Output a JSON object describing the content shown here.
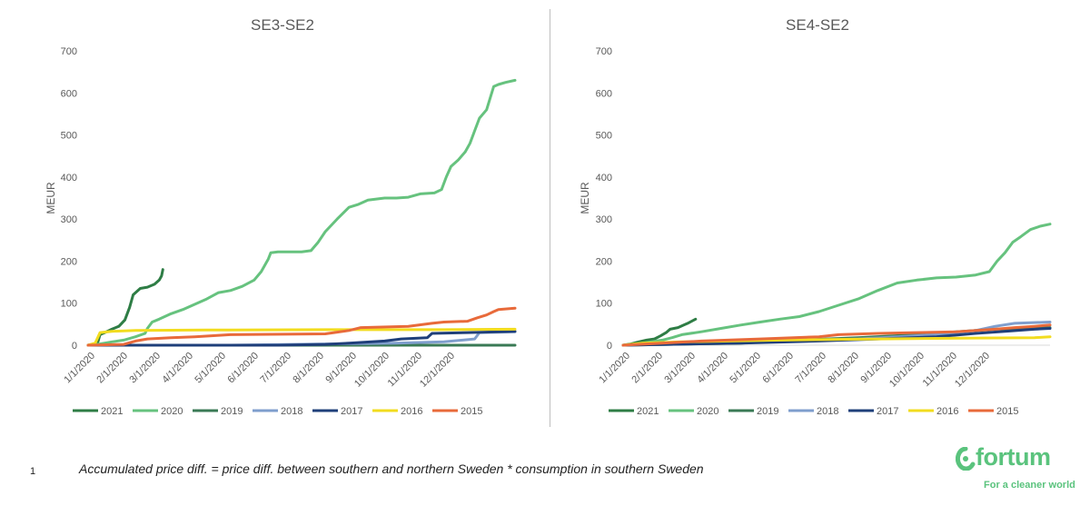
{
  "chart_data": [
    {
      "type": "line",
      "title": "SE3-SE2",
      "ylabel": "MEUR",
      "ylim": [
        0,
        700
      ],
      "yticks": [
        "0",
        "100",
        "200",
        "300",
        "400",
        "500",
        "600",
        "700"
      ],
      "xlabels": [
        "1/1/2020",
        "2/1/2020",
        "3/1/2020",
        "4/1/2020",
        "5/1/2020",
        "6/1/2020",
        "7/1/2020",
        "8/1/2020",
        "9/1/2020",
        "10/1/2020",
        "11/1/2020",
        "12/1/2020"
      ],
      "legend_position": "bottom",
      "series": [
        {
          "name": "2021",
          "color": "#2e7d45",
          "points": [
            [
              0,
              0
            ],
            [
              0.4,
              5
            ],
            [
              0.5,
              25
            ],
            [
              0.7,
              30
            ],
            [
              1.0,
              38
            ],
            [
              1.3,
              45
            ],
            [
              1.55,
              60
            ],
            [
              1.75,
              90
            ],
            [
              1.9,
              120
            ],
            [
              2.2,
              135
            ],
            [
              2.5,
              138
            ],
            [
              2.8,
              145
            ],
            [
              3.0,
              155
            ],
            [
              3.1,
              165
            ],
            [
              3.15,
              180
            ]
          ]
        },
        {
          "name": "2020",
          "color": "#66c27e",
          "points": [
            [
              0,
              0
            ],
            [
              0.5,
              3
            ],
            [
              1,
              8
            ],
            [
              1.5,
              12
            ],
            [
              2,
              20
            ],
            [
              2.4,
              28
            ],
            [
              2.5,
              40
            ],
            [
              2.7,
              55
            ],
            [
              3,
              62
            ],
            [
              3.5,
              75
            ],
            [
              4,
              85
            ],
            [
              5,
              110
            ],
            [
              5.5,
              125
            ],
            [
              6,
              130
            ],
            [
              6.5,
              140
            ],
            [
              7,
              155
            ],
            [
              7.3,
              175
            ],
            [
              7.6,
              205
            ],
            [
              7.7,
              220
            ],
            [
              8,
              222
            ],
            [
              9,
              222
            ],
            [
              9.4,
              225
            ],
            [
              9.7,
              245
            ],
            [
              10,
              270
            ],
            [
              10.5,
              300
            ],
            [
              11,
              328
            ],
            [
              11.4,
              335
            ],
            [
              11.8,
              345
            ],
            [
              12.5,
              350
            ],
            [
              13,
              350
            ],
            [
              13.5,
              352
            ],
            [
              14,
              360
            ],
            [
              14.6,
              362
            ],
            [
              14.9,
              370
            ],
            [
              15.1,
              400
            ],
            [
              15.3,
              425
            ],
            [
              15.6,
              440
            ],
            [
              15.9,
              460
            ],
            [
              16.1,
              480
            ],
            [
              16.3,
              510
            ],
            [
              16.5,
              540
            ],
            [
              16.8,
              560
            ],
            [
              17.1,
              615
            ],
            [
              17.3,
              620
            ],
            [
              17.6,
              625
            ],
            [
              18,
              630
            ]
          ]
        },
        {
          "name": "2019",
          "color": "#3a7a55",
          "points": [
            [
              0,
              0
            ],
            [
              18,
              0
            ]
          ]
        },
        {
          "name": "2018",
          "color": "#7f9ecd",
          "points": [
            [
              0,
              0
            ],
            [
              6,
              0
            ],
            [
              10,
              3
            ],
            [
              13,
              5
            ],
            [
              15,
              8
            ],
            [
              16.3,
              15
            ],
            [
              16.5,
              30
            ],
            [
              18,
              32
            ]
          ]
        },
        {
          "name": "2017",
          "color": "#1f3f7a",
          "points": [
            [
              0,
              0
            ],
            [
              8,
              0
            ],
            [
              10,
              2
            ],
            [
              11,
              5
            ],
            [
              12.5,
              10
            ],
            [
              13.2,
              15
            ],
            [
              14.3,
              18
            ],
            [
              14.5,
              28
            ],
            [
              16,
              30
            ],
            [
              18,
              33
            ]
          ]
        },
        {
          "name": "2016",
          "color": "#f2dc1f",
          "points": [
            [
              0,
              0
            ],
            [
              0.3,
              5
            ],
            [
              0.5,
              30
            ],
            [
              1,
              33
            ],
            [
              2,
              35
            ],
            [
              5,
              36
            ],
            [
              10,
              37
            ],
            [
              15,
              37
            ],
            [
              18,
              38
            ]
          ]
        },
        {
          "name": "2015",
          "color": "#e86a3a",
          "points": [
            [
              0,
              0
            ],
            [
              1.5,
              2
            ],
            [
              2,
              10
            ],
            [
              2.5,
              15
            ],
            [
              3.5,
              18
            ],
            [
              4.5,
              20
            ],
            [
              6,
              25
            ],
            [
              10,
              27
            ],
            [
              11,
              35
            ],
            [
              11.5,
              42
            ],
            [
              13.5,
              45
            ],
            [
              14.5,
              52
            ],
            [
              15,
              55
            ],
            [
              16,
              57
            ],
            [
              16.4,
              65
            ],
            [
              16.8,
              72
            ],
            [
              17.1,
              80
            ],
            [
              17.3,
              85
            ],
            [
              18,
              88
            ]
          ]
        }
      ]
    },
    {
      "type": "line",
      "title": "SE4-SE2",
      "ylabel": "MEUR",
      "ylim": [
        0,
        700
      ],
      "yticks": [
        "0",
        "100",
        "200",
        "300",
        "400",
        "500",
        "600",
        "700"
      ],
      "xlabels": [
        "1/1/2020",
        "2/1/2020",
        "3/1/2020",
        "4/1/2020",
        "5/1/2020",
        "6/1/2020",
        "7/1/2020",
        "8/1/2020",
        "9/1/2020",
        "10/1/2020",
        "11/1/2020",
        "12/1/2020"
      ],
      "legend_position": "bottom",
      "series": [
        {
          "name": "2021",
          "color": "#2e7d45",
          "points": [
            [
              0,
              0
            ],
            [
              0.4,
              3
            ],
            [
              0.8,
              8
            ],
            [
              1.2,
              12
            ],
            [
              1.6,
              15
            ],
            [
              1.9,
              22
            ],
            [
              2.2,
              30
            ],
            [
              2.4,
              38
            ],
            [
              2.8,
              42
            ],
            [
              3.1,
              48
            ],
            [
              3.3,
              52
            ],
            [
              3.5,
              57
            ],
            [
              3.7,
              62
            ]
          ]
        },
        {
          "name": "2020",
          "color": "#66c27e",
          "points": [
            [
              0,
              0
            ],
            [
              1,
              5
            ],
            [
              2,
              12
            ],
            [
              2.5,
              18
            ],
            [
              3,
              25
            ],
            [
              4,
              32
            ],
            [
              5,
              40
            ],
            [
              6,
              48
            ],
            [
              7,
              55
            ],
            [
              8,
              62
            ],
            [
              9,
              68
            ],
            [
              10,
              80
            ],
            [
              11,
              95
            ],
            [
              12,
              110
            ],
            [
              13,
              130
            ],
            [
              14,
              148
            ],
            [
              15,
              155
            ],
            [
              16,
              160
            ],
            [
              17,
              162
            ],
            [
              18,
              167
            ],
            [
              18.7,
              175
            ],
            [
              19.1,
              200
            ],
            [
              19.5,
              220
            ],
            [
              19.9,
              245
            ],
            [
              20.3,
              258
            ],
            [
              20.8,
              275
            ],
            [
              21.3,
              283
            ],
            [
              21.8,
              288
            ]
          ]
        },
        {
          "name": "2019",
          "color": "#3a7a55",
          "points": [
            [
              0,
              0
            ],
            [
              6,
              5
            ],
            [
              9,
              12
            ],
            [
              12,
              18
            ],
            [
              15,
              25
            ],
            [
              17,
              32
            ],
            [
              19,
              38
            ],
            [
              21.8,
              42
            ]
          ]
        },
        {
          "name": "2018",
          "color": "#7f9ecd",
          "points": [
            [
              0,
              0
            ],
            [
              3,
              3
            ],
            [
              7,
              8
            ],
            [
              12,
              15
            ],
            [
              16,
              25
            ],
            [
              18,
              35
            ],
            [
              19,
              45
            ],
            [
              20,
              52
            ],
            [
              21.8,
              55
            ]
          ]
        },
        {
          "name": "2017",
          "color": "#1f3f7a",
          "points": [
            [
              0,
              0
            ],
            [
              6,
              5
            ],
            [
              10,
              10
            ],
            [
              13,
              15
            ],
            [
              16,
              20
            ],
            [
              18,
              28
            ],
            [
              19.5,
              33
            ],
            [
              21,
              38
            ],
            [
              21.8,
              40
            ]
          ]
        },
        {
          "name": "2016",
          "color": "#f2dc1f",
          "points": [
            [
              0,
              0
            ],
            [
              1,
              5
            ],
            [
              3,
              8
            ],
            [
              8,
              12
            ],
            [
              13,
              15
            ],
            [
              18,
              17
            ],
            [
              21,
              18
            ],
            [
              21.8,
              20
            ]
          ]
        },
        {
          "name": "2015",
          "color": "#e86a3a",
          "points": [
            [
              0,
              0
            ],
            [
              2,
              5
            ],
            [
              4,
              10
            ],
            [
              7,
              15
            ],
            [
              10,
              20
            ],
            [
              11,
              25
            ],
            [
              13,
              28
            ],
            [
              15,
              30
            ],
            [
              17,
              32
            ],
            [
              19,
              38
            ],
            [
              20,
              42
            ],
            [
              21,
              45
            ],
            [
              21.8,
              48
            ]
          ]
        }
      ]
    }
  ],
  "footnote": "Accumulated price diff. = price diff. between southern and northern Sweden * consumption in southern Sweden",
  "page_number": "1",
  "logo": {
    "wordmark": "fortum",
    "tagline": "For a cleaner world",
    "color": "#5ac37d"
  }
}
